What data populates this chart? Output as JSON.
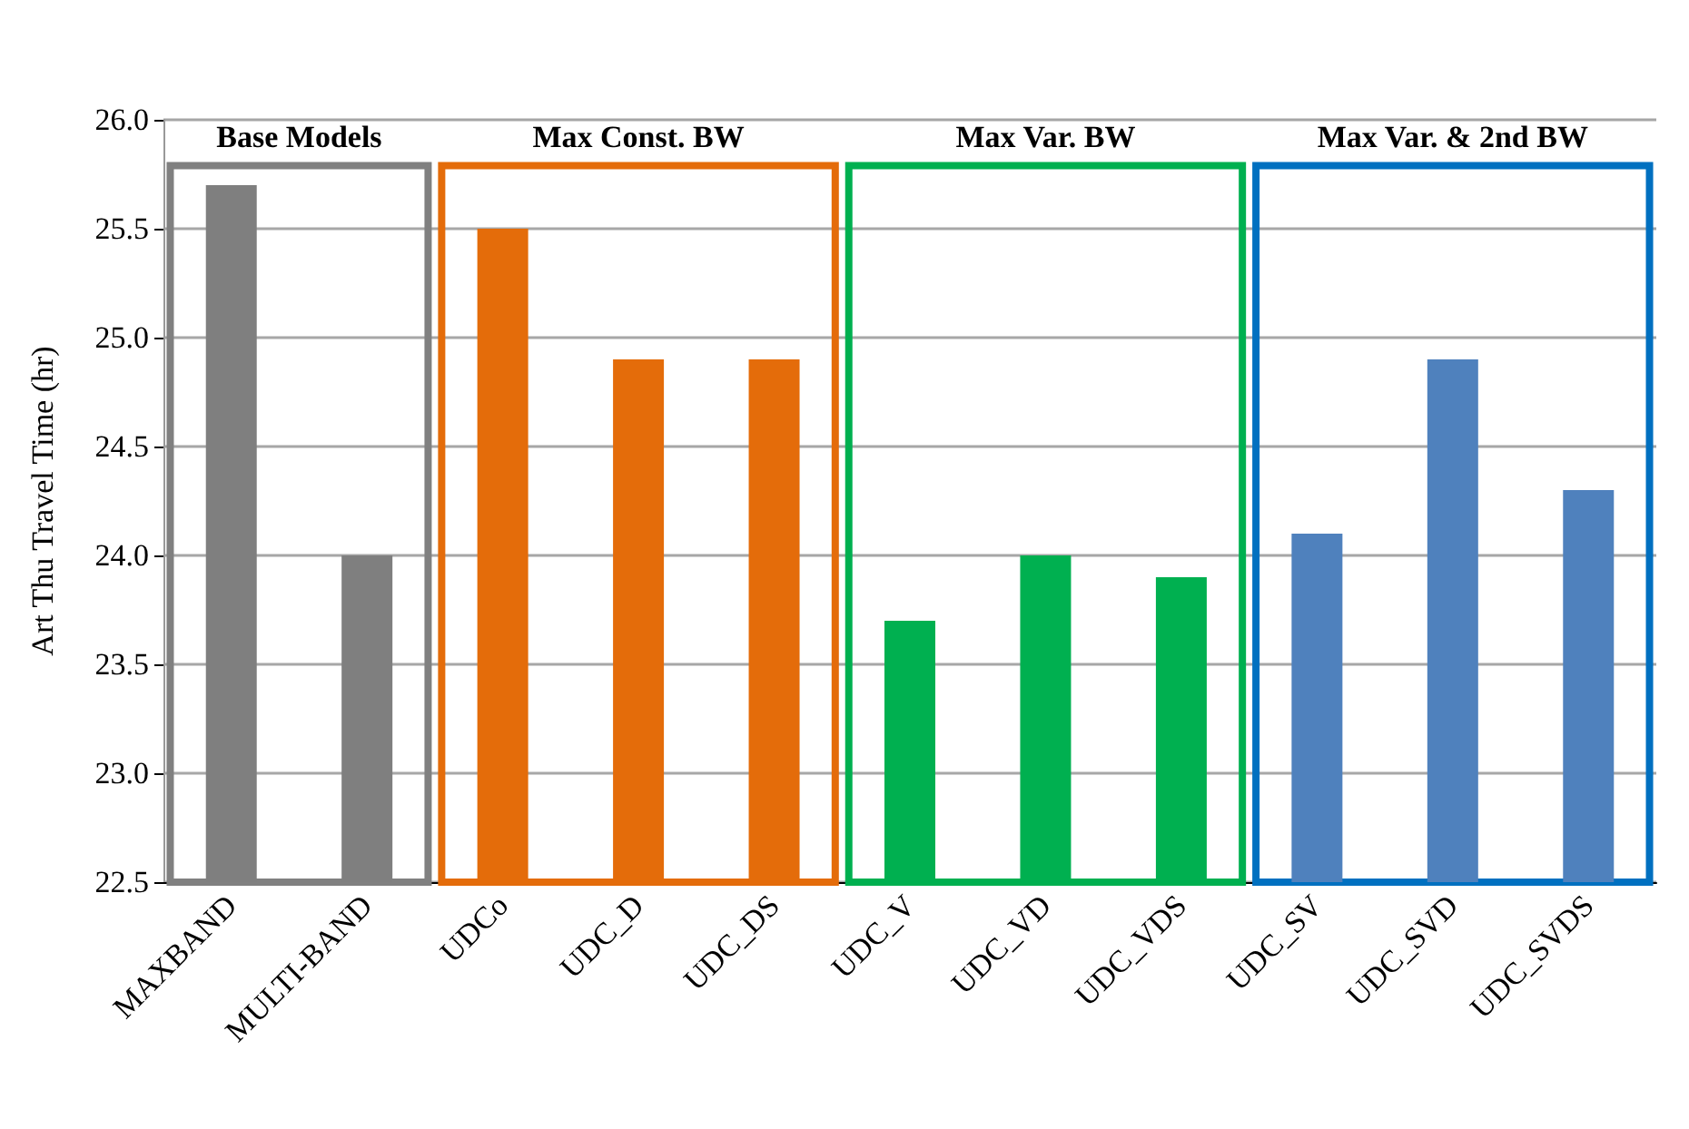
{
  "chart_data": {
    "type": "bar",
    "ylabel": "Art Thu Travel Time (hr)",
    "categories": [
      "MAXBAND",
      "MULTI-BAND",
      "UDCo",
      "UDC_D",
      "UDC_DS",
      "UDC_V",
      "UDC_VD",
      "UDC_VDS",
      "UDC_SV",
      "UDC_SVD",
      "UDC_SVDS"
    ],
    "values": [
      25.7,
      24.0,
      25.5,
      24.9,
      24.9,
      23.7,
      24.0,
      23.9,
      24.1,
      24.9,
      24.3
    ],
    "colors": [
      "#7f7f7f",
      "#7f7f7f",
      "#e46c0a",
      "#e46c0a",
      "#e46c0a",
      "#00b050",
      "#00b050",
      "#00b050",
      "#4f81bd",
      "#4f81bd",
      "#4f81bd"
    ],
    "ylim": [
      22.5,
      26.0
    ],
    "yticks": [
      {
        "value": 22.5,
        "label": "22.5"
      },
      {
        "value": 23,
        "label": "23.0"
      },
      {
        "value": 23.5,
        "label": "23.5"
      },
      {
        "value": 24,
        "label": "24.0"
      },
      {
        "value": 24.5,
        "label": "24.5"
      },
      {
        "value": 25,
        "label": "25.0"
      },
      {
        "value": 25.5,
        "label": "25.5"
      },
      {
        "value": 26,
        "label": "26.0"
      }
    ],
    "grid": "y",
    "bands": [
      {
        "axis": "x",
        "from": "MAXBAND",
        "to": "MULTI-BAND",
        "label": "Base Models",
        "color": "#808080"
      },
      {
        "axis": "x",
        "from": "UDCo",
        "to": "UDC_DS",
        "label": "Max Const. BW",
        "color": "#e46c0a"
      },
      {
        "axis": "x",
        "from": "UDC_V",
        "to": "UDC_VDS",
        "label": "Max Var. BW",
        "color": "#00b050"
      },
      {
        "axis": "x",
        "from": "UDC_SV",
        "to": "UDC_SVDS",
        "label": "Max Var. & 2nd BW",
        "color": "#0070c0"
      }
    ]
  }
}
